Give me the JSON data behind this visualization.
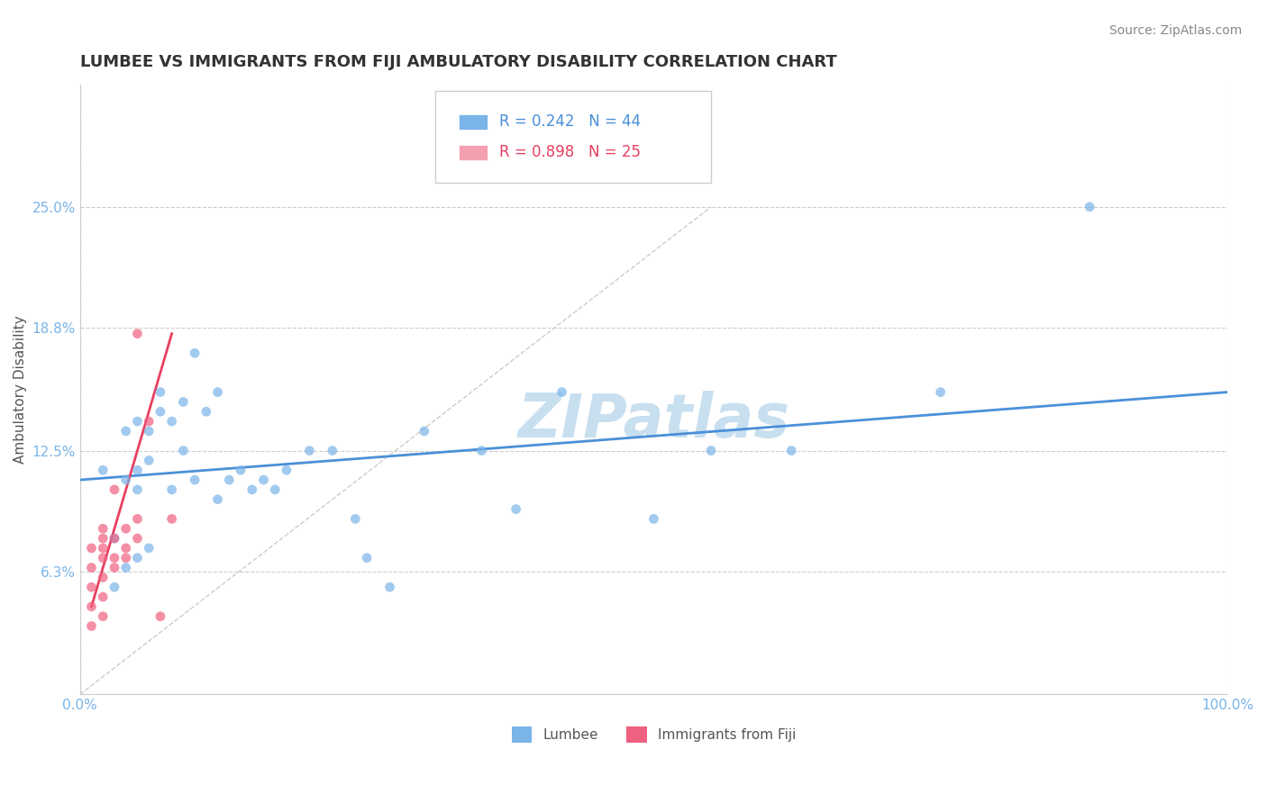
{
  "title": "LUMBEE VS IMMIGRANTS FROM FIJI AMBULATORY DISABILITY CORRELATION CHART",
  "source": "Source: ZipAtlas.com",
  "xlabel": "",
  "ylabel": "Ambulatory Disability",
  "xlim": [
    0,
    100
  ],
  "ylim": [
    0,
    31.25
  ],
  "yticks": [
    0,
    6.3,
    12.5,
    18.8,
    25.0
  ],
  "ytick_labels": [
    "",
    "6.3%",
    "12.5%",
    "18.8%",
    "25.0%"
  ],
  "xticks": [
    0,
    100
  ],
  "xtick_labels": [
    "0.0%",
    "100.0%"
  ],
  "legend_entries": [
    {
      "label": "R = 0.242   N = 44",
      "color": "#7ab4e8"
    },
    {
      "label": "R = 0.898   N = 25",
      "color": "#f4a0b0"
    }
  ],
  "series_lumbee": {
    "color": "#7ab4e8",
    "marker": "o",
    "alpha": 0.7,
    "x": [
      2,
      3,
      3,
      4,
      4,
      4,
      5,
      5,
      5,
      5,
      6,
      6,
      6,
      7,
      7,
      8,
      8,
      9,
      9,
      10,
      10,
      11,
      12,
      12,
      13,
      14,
      15,
      16,
      17,
      18,
      20,
      22,
      24,
      25,
      27,
      30,
      35,
      38,
      42,
      50,
      55,
      62,
      75,
      88
    ],
    "y": [
      11.5,
      5.5,
      8.0,
      6.5,
      11.0,
      13.5,
      7.0,
      10.5,
      11.5,
      14.0,
      7.5,
      12.0,
      13.5,
      14.5,
      15.5,
      10.5,
      14.0,
      12.5,
      15.0,
      11.0,
      17.5,
      14.5,
      10.0,
      15.5,
      11.0,
      11.5,
      10.5,
      11.0,
      10.5,
      11.5,
      12.5,
      12.5,
      9.0,
      7.0,
      5.5,
      13.5,
      12.5,
      9.5,
      15.5,
      9.0,
      12.5,
      12.5,
      15.5,
      25.0
    ]
  },
  "series_fiji": {
    "color": "#f06080",
    "marker": "o",
    "alpha": 0.7,
    "x": [
      1,
      1,
      1,
      1,
      1,
      2,
      2,
      2,
      2,
      2,
      2,
      2,
      3,
      3,
      3,
      3,
      4,
      4,
      4,
      5,
      5,
      5,
      6,
      7,
      8
    ],
    "y": [
      3.5,
      4.5,
      5.5,
      6.5,
      7.5,
      4.0,
      5.0,
      6.0,
      7.0,
      7.5,
      8.0,
      8.5,
      6.5,
      7.0,
      8.0,
      10.5,
      7.0,
      7.5,
      8.5,
      8.0,
      9.0,
      18.5,
      14.0,
      4.0,
      9.0
    ]
  },
  "trendline_lumbee": {
    "color": "#4a90d9",
    "linewidth": 2.0,
    "x_start": 0,
    "x_end": 100,
    "y_start": 11.0,
    "y_end": 15.5
  },
  "trendline_fiji": {
    "color": "#e84060",
    "linewidth": 2.0,
    "x_start": 1,
    "x_end": 8,
    "y_start": 4.5,
    "y_end": 18.5
  },
  "dashed_line": {
    "color": "#cccccc",
    "linewidth": 1.0,
    "linestyle": "--",
    "x_start": 0,
    "x_end": 55,
    "y_start": 0,
    "y_end": 25
  },
  "watermark": "ZIPatlas",
  "watermark_color": "#c8dff0",
  "watermark_fontsize": 48,
  "background_color": "#ffffff",
  "grid_color": "#cccccc",
  "grid_linestyle": "--",
  "title_fontsize": 13,
  "axis_label_fontsize": 11,
  "tick_label_color": "#7ab4e8",
  "source_fontsize": 10
}
